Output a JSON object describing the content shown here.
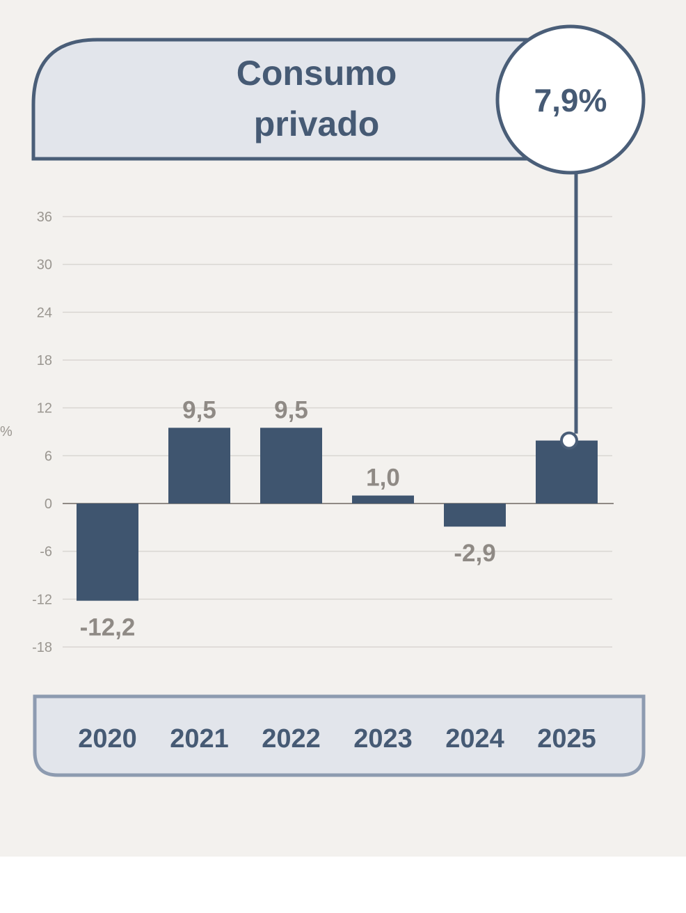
{
  "chart_data": {
    "type": "bar",
    "title": "Consumo privado",
    "title_lines": [
      "Consumo",
      "privado"
    ],
    "highlight": "7,9%",
    "highlight_category": "2025",
    "ylabel": "%",
    "xlabel": "",
    "categories": [
      "2020",
      "2021",
      "2022",
      "2023",
      "2024",
      "2025"
    ],
    "values": [
      -12.2,
      9.5,
      9.5,
      1.0,
      -2.9,
      7.9
    ],
    "data_labels": [
      "-12,2",
      "9,5",
      "9,5",
      "1,0",
      "-2,9",
      ""
    ],
    "ylim": [
      -18,
      36
    ],
    "yticks": [
      "36",
      "30",
      "24",
      "18",
      "12",
      "6",
      "0",
      "-6",
      "-12",
      "-18"
    ],
    "ytick_values": [
      36,
      30,
      24,
      18,
      12,
      6,
      0,
      -6,
      -12,
      -18
    ],
    "grid": true,
    "legend": "none",
    "colors": {
      "bar": "#3f556f",
      "frame": "#4a5e78",
      "panel": "#e2e5eb",
      "background": "#f3f1ee",
      "label": "#8f8a85"
    }
  }
}
